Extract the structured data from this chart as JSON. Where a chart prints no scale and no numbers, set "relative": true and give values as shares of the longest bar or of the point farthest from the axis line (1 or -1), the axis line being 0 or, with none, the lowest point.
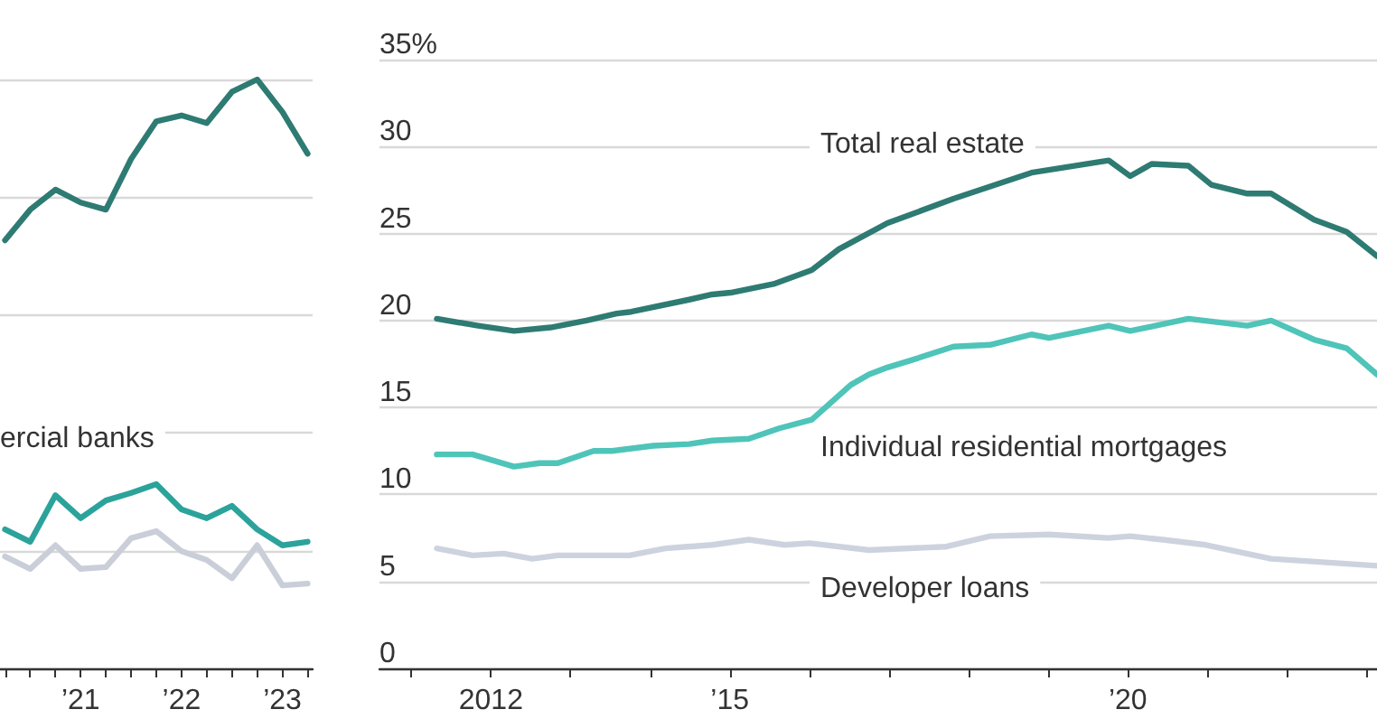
{
  "chart_data": [
    {
      "type": "line",
      "relative": true,
      "grid": "y",
      "tick_labels": "x",
      "xlim": [
        2020.2,
        2023.3
      ],
      "title": "ercial banks",
      "xticks": [
        {
          "value": 2020.25,
          "label": null
        },
        {
          "value": 2020.5,
          "label": null
        },
        {
          "value": 2020.75,
          "label": null
        },
        {
          "value": 2021,
          "label": "’21"
        },
        {
          "value": 2021.25,
          "label": null
        },
        {
          "value": 2021.5,
          "label": null
        },
        {
          "value": 2021.75,
          "label": null
        },
        {
          "value": 2022,
          "label": "’22"
        },
        {
          "value": 2022.25,
          "label": null
        },
        {
          "value": 2022.5,
          "label": null
        },
        {
          "value": 2022.75,
          "label": null
        },
        {
          "value": 2023,
          "label": "’23"
        },
        {
          "value": 2023.25,
          "label": null
        }
      ],
      "x": [
        2020.25,
        2020.5,
        2020.75,
        2021,
        2021.25,
        2021.5,
        2021.75,
        2022,
        2022.25,
        2022.5,
        2022.75,
        2023,
        2023.25
      ],
      "series": [
        {
          "color": "#2e7b73",
          "values": [
            0.727,
            0.779,
            0.813,
            0.791,
            0.779,
            0.865,
            0.929,
            0.939,
            0.926,
            0.979,
            1,
            0.945,
            0.874
          ]
        },
        {
          "color": "#2ba39b",
          "values": [
            0.236,
            0.215,
            0.294,
            0.255,
            0.285,
            0.298,
            0.313,
            0.27,
            0.255,
            0.276,
            0.236,
            0.209,
            0.215
          ]
        },
        {
          "color": "#c9ced9",
          "values": [
            0.19,
            0.169,
            0.209,
            0.169,
            0.172,
            0.221,
            0.233,
            0.199,
            0.184,
            0.153,
            0.209,
            0.141,
            0.144
          ]
        }
      ]
    },
    {
      "type": "line",
      "grid": "y",
      "xlim": [
        2010.6,
        2023.13
      ],
      "ylim": [
        0,
        35
      ],
      "yticks": [
        0,
        5,
        10,
        15,
        20,
        25,
        30,
        {
          "value": 35,
          "label": "35%"
        }
      ],
      "xticks": [
        {
          "value": 2011,
          "label": null
        },
        {
          "value": 2012,
          "label": "2012"
        },
        {
          "value": 2013,
          "label": null
        },
        {
          "value": 2014,
          "label": null
        },
        {
          "value": 2015,
          "label": "’15"
        },
        {
          "value": 2016,
          "label": null
        },
        {
          "value": 2017,
          "label": null
        },
        {
          "value": 2018,
          "label": null
        },
        {
          "value": 2019,
          "label": null
        },
        {
          "value": 2020,
          "label": "’20"
        },
        {
          "value": 2021,
          "label": null
        },
        {
          "value": 2022,
          "label": null
        },
        {
          "value": 2023,
          "label": null
        }
      ],
      "series": [
        {
          "name": "Total real estate",
          "color": "#2e7b73",
          "x": [
            2011.32,
            2011.84,
            2012.29,
            2012.75,
            2013.2,
            2013.58,
            2013.76,
            2014.49,
            2014.78,
            2015.01,
            2015.55,
            2016.03,
            2016.37,
            2016.98,
            2017.81,
            2018.79,
            2019.76,
            2020.03,
            2020.3,
            2020.76,
            2021.05,
            2021.5,
            2021.8,
            2022.34,
            2022.75,
            2023.13
          ],
          "values": [
            20.1,
            19.7,
            19.4,
            19.6,
            20.0,
            20.4,
            20.5,
            21.2,
            21.5,
            21.6,
            22.1,
            22.9,
            24.1,
            25.6,
            27.0,
            28.5,
            29.2,
            28.3,
            29.0,
            28.9,
            27.8,
            27.3,
            27.3,
            25.8,
            25.1,
            23.7
          ]
        },
        {
          "name": "Individual residential mortgages",
          "color": "#4fc4b9",
          "x": [
            2011.32,
            2011.77,
            2012.29,
            2012.61,
            2012.84,
            2013.29,
            2013.52,
            2014.04,
            2014.49,
            2014.78,
            2015.24,
            2015.62,
            2016.03,
            2016.52,
            2016.75,
            2016.98,
            2017.27,
            2017.81,
            2018.27,
            2018.79,
            2019.01,
            2019.76,
            2020.03,
            2020.76,
            2021.5,
            2021.8,
            2022.34,
            2022.75,
            2023.13
          ],
          "values": [
            12.3,
            12.3,
            11.6,
            11.8,
            11.8,
            12.5,
            12.5,
            12.8,
            12.9,
            13.1,
            13.2,
            13.8,
            14.3,
            16.3,
            16.9,
            17.3,
            17.7,
            18.5,
            18.6,
            19.2,
            19.0,
            19.7,
            19.4,
            20.1,
            19.7,
            20.0,
            18.9,
            18.4,
            16.9
          ]
        },
        {
          "name": "Developer loans",
          "color": "#cdd3de",
          "x": [
            2011.32,
            2011.77,
            2012.16,
            2012.52,
            2012.84,
            2013.74,
            2014.19,
            2014.78,
            2015.24,
            2015.69,
            2016.0,
            2016.75,
            2017.72,
            2018.27,
            2019.01,
            2019.76,
            2020.03,
            2020.44,
            2020.98,
            2021.8,
            2023.13
          ],
          "values": [
            6.9,
            6.5,
            6.6,
            6.3,
            6.5,
            6.5,
            6.9,
            7.1,
            7.4,
            7.1,
            7.2,
            6.8,
            7.0,
            7.6,
            7.7,
            7.5,
            7.6,
            7.4,
            7.1,
            6.3,
            5.9
          ]
        }
      ]
    }
  ]
}
